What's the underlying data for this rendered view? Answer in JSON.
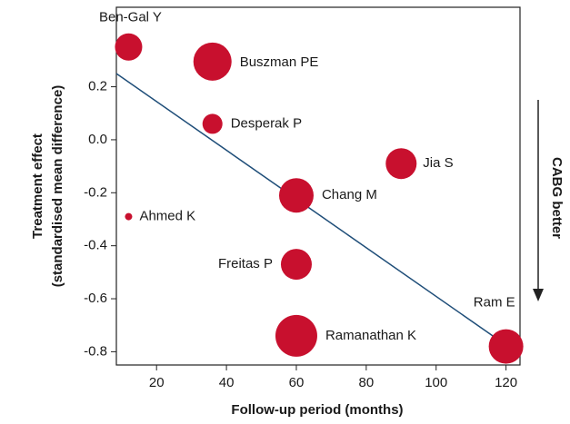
{
  "chart_data": {
    "type": "scatter",
    "xlabel": "Follow-up period (months)",
    "ylabel": [
      "Treatment effect",
      "(standardised mean difference)"
    ],
    "annotation": "CABG better",
    "labels": [
      "Ben-Gal Y",
      "Buszman PE",
      "Desperak P",
      "Jia S",
      "Chang M",
      "Ahmed K",
      "Freitas P",
      "Ramanathan K",
      "Ram E"
    ],
    "x": [
      12,
      36,
      36,
      90,
      60,
      12,
      60,
      60,
      120
    ],
    "values": [
      0.35,
      0.295,
      0.06,
      -0.09,
      -0.21,
      -0.29,
      -0.47,
      -0.74,
      -0.78
    ],
    "sizes": [
      15,
      21,
      11,
      17,
      19,
      4,
      17,
      23,
      19
    ],
    "color": "#c8102e",
    "fit_line": {
      "x": [
        8.5,
        120
      ],
      "y": [
        0.25,
        -0.775
      ],
      "color": "#1f4e79"
    },
    "xlim": [
      8.5,
      124
    ],
    "ylim": [
      -0.85,
      0.5
    ],
    "xticks": [
      20,
      40,
      60,
      80,
      100,
      120
    ],
    "yticks": [
      {
        "value": 0.2,
        "label": "0.2"
      },
      {
        "value": 0.0,
        "label": "0.0"
      },
      {
        "value": -0.2,
        "label": "-0.2"
      },
      {
        "value": -0.4,
        "label": "-0.4"
      },
      {
        "value": -0.6,
        "label": "-0.6"
      },
      {
        "value": -0.8,
        "label": "-0.8"
      }
    ]
  }
}
